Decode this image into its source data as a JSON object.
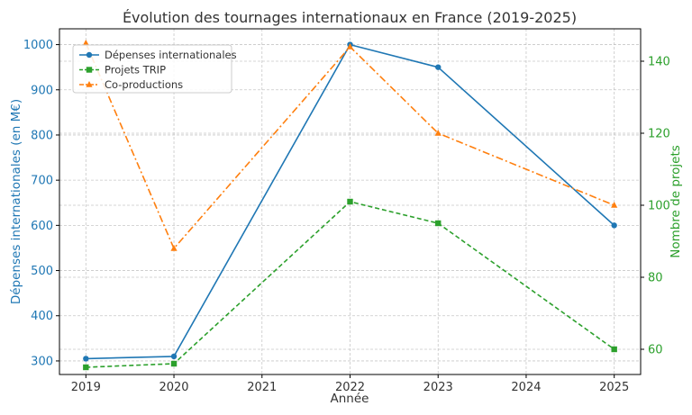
{
  "chart_data": {
    "type": "line",
    "title": "Évolution des tournages internationaux en France (2019-2025)",
    "xlabel": "Année",
    "ylabel_left": "Dépenses internationales (en M€)",
    "ylabel_right": "Nombre de projets",
    "x": [
      2019,
      2020,
      2021,
      2022,
      2023,
      2024,
      2025
    ],
    "xlim": [
      2018.7,
      2025.3
    ],
    "ylim_left": [
      270,
      1035
    ],
    "ylim_right": [
      53,
      149
    ],
    "yticks_left": [
      300,
      400,
      500,
      600,
      700,
      800,
      900,
      1000
    ],
    "yticks_right": [
      60,
      80,
      100,
      120,
      140
    ],
    "grid": true,
    "legend_position": "top-left",
    "colors": {
      "left_axis": "#1f77b4",
      "right_axis": "#2ca02c"
    },
    "series": [
      {
        "name": "Dépenses internationales",
        "axis": "left",
        "color": "#1f77b4",
        "linestyle": "solid",
        "marker": "circle",
        "x": [
          2019,
          2020,
          2022,
          2023,
          2025
        ],
        "values": [
          305,
          310,
          1000,
          950,
          600
        ]
      },
      {
        "name": "Projets TRIP",
        "axis": "right",
        "color": "#2ca02c",
        "linestyle": "dashed",
        "marker": "square",
        "x": [
          2019,
          2020,
          2022,
          2023,
          2025
        ],
        "values": [
          55,
          56,
          101,
          95,
          60
        ]
      },
      {
        "name": "Co-productions",
        "axis": "right",
        "color": "#ff7f0e",
        "linestyle": "dashdot",
        "marker": "triangle",
        "x": [
          2019,
          2020,
          2022,
          2023,
          2025
        ],
        "values": [
          145,
          88,
          144,
          120,
          100
        ]
      }
    ]
  }
}
